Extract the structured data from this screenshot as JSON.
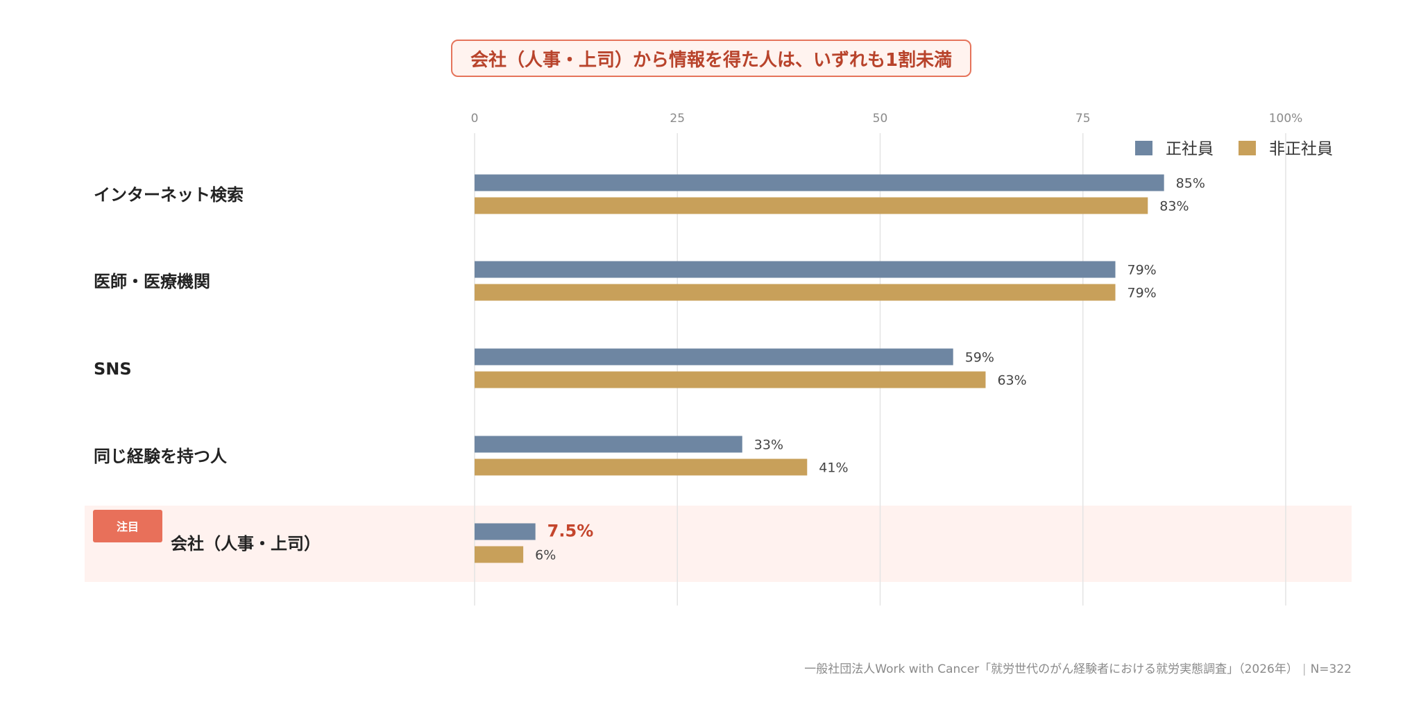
{
  "title": "会社（人事・上司）から情報を得た人は、いずれも1割未満",
  "source": "一般社団法人Work with Cancer「就労世代のがん経験者における就労実態調査」（2026年）",
  "sample": "N=322",
  "colors": {
    "series_a": "#6e86a2",
    "series_b": "#c8a05a",
    "highlight_bg": "#fff2ef",
    "highlight_badge": "#e8705a",
    "highlight_text": "#c4452c"
  },
  "chart_data": {
    "type": "bar",
    "orientation": "horizontal",
    "categories": [
      "インターネット検索",
      "医師・医療機関",
      "SNS",
      "同じ経験を持つ人",
      "会社（人事・上司）"
    ],
    "series": [
      {
        "name": "正社員",
        "values": [
          85,
          79,
          59,
          33,
          7.5
        ],
        "labels": [
          "85%",
          "79%",
          "59%",
          "33%",
          "7.5%"
        ]
      },
      {
        "name": "非正社員",
        "values": [
          83,
          79,
          63,
          41,
          6
        ],
        "labels": [
          "83%",
          "79%",
          "63%",
          "41%",
          "6%"
        ]
      }
    ],
    "xlim": [
      0,
      100
    ],
    "ticks": [
      "0",
      "25",
      "50",
      "75",
      "100%"
    ],
    "tick_values": [
      0,
      25,
      50,
      75,
      100
    ],
    "grid": true,
    "legend": "top-right",
    "highlight": {
      "category_index": 4,
      "badge": "注目"
    }
  }
}
